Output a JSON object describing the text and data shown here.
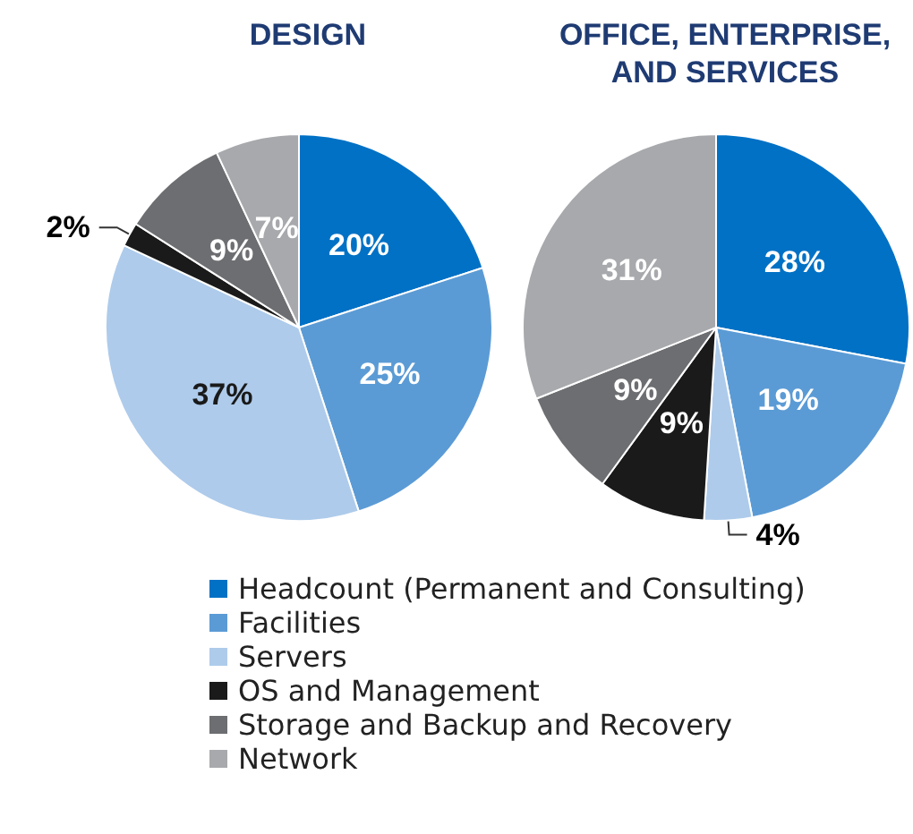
{
  "chart_data": {
    "type": "pie",
    "categories": [
      "Headcount (Permanent and Consulting)",
      "Facilities",
      "Servers",
      "OS and Management",
      "Storage and Backup and Recovery",
      "Network"
    ],
    "colors": [
      "#0071c5",
      "#5b9bd5",
      "#aecbeb",
      "#1a1a1a",
      "#6d6e71",
      "#a7a9ac"
    ],
    "legend": "bottom",
    "series": [
      {
        "name": "DESIGN",
        "values": [
          20,
          25,
          37,
          2,
          9,
          7
        ],
        "value_labels": [
          "20%",
          "25%",
          "37%",
          "2%",
          "9%",
          "7%"
        ]
      },
      {
        "name": "OFFICE, ENTERPRISE,\nAND SERVICES",
        "values": [
          28,
          19,
          4,
          9,
          9,
          31
        ],
        "value_labels": [
          "28%",
          "19%",
          "4%",
          "9%",
          "9%",
          "31%"
        ]
      }
    ]
  }
}
